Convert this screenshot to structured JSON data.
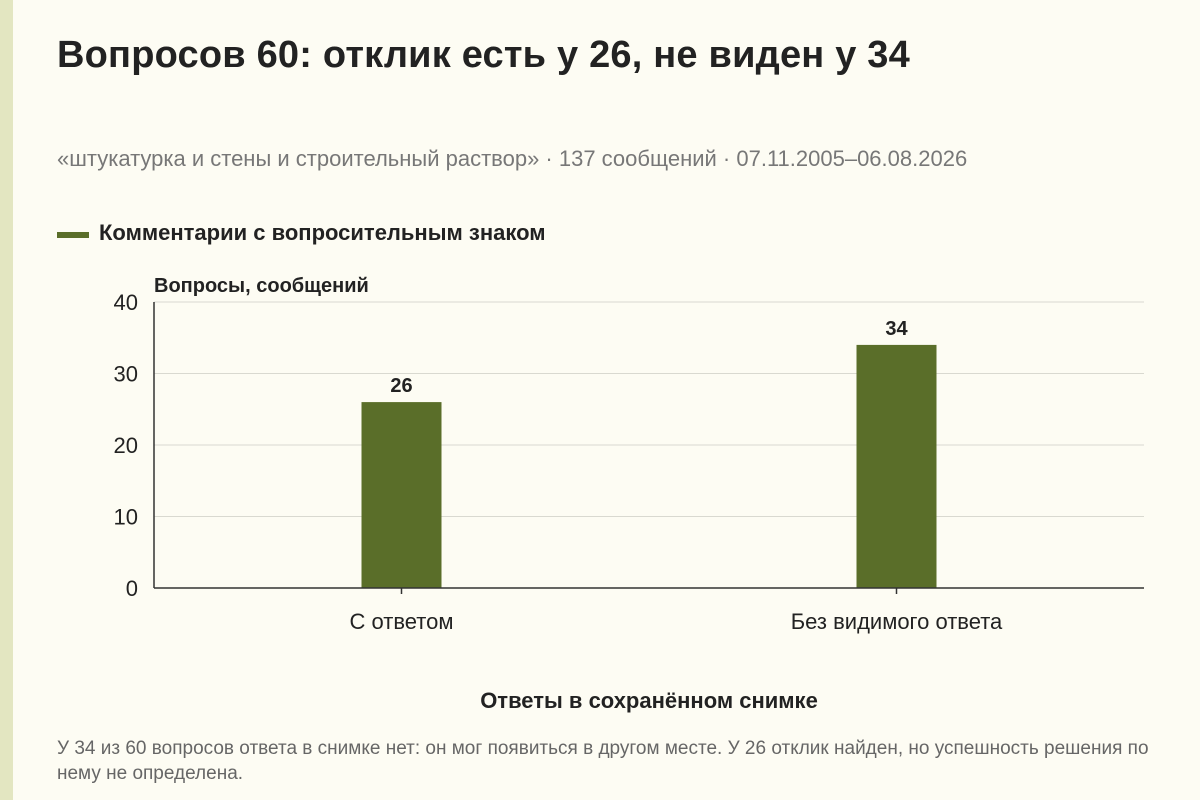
{
  "header": {
    "title": "Вопросов 60: отклик есть у 26, не виден у 34",
    "subtitle": "«штукатурка и стены и строительный раствор» · 137 сообщений · 07.11.2005–06.08.2026"
  },
  "legend": {
    "label": "Комментарии с вопросительным знаком",
    "color": "#5a6e29"
  },
  "chart_data": {
    "type": "bar",
    "categories": [
      "С ответом",
      "Без видимого ответа"
    ],
    "series": [
      {
        "name": "Комментарии с вопросительным знаком",
        "values": [
          26,
          34
        ]
      }
    ],
    "data_labels": [
      "26",
      "34"
    ],
    "ylabel": "Вопросы, сообщений",
    "xlabel": "Ответы в сохранённом снимке",
    "ylim": [
      0,
      40
    ],
    "yticks": [
      0,
      10,
      20,
      30,
      40
    ],
    "ytick_labels": [
      "0",
      "10",
      "20",
      "30",
      "40"
    ],
    "grid": true,
    "legend_position": "top-left",
    "bar_color": "#5a6e29"
  },
  "footer": {
    "note": "У 34 из 60 вопросов ответа в снимке нет: он мог появиться в другом месте. У 26 отклик найден, но успешность решения по нему не определена."
  }
}
